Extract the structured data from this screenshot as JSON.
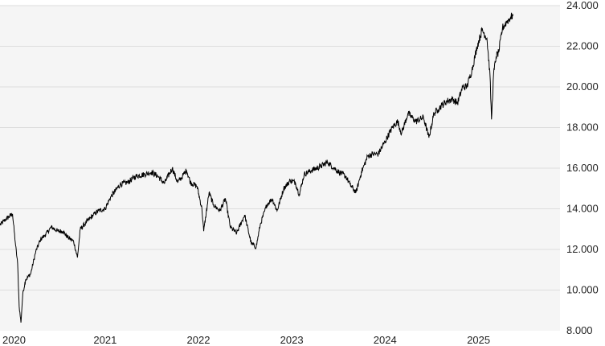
{
  "chart_data": {
    "type": "line",
    "title": "",
    "xlabel": "",
    "ylabel": "",
    "grid": true,
    "legend": "none",
    "colors": {
      "plot_background": "#f5f5f5",
      "grid": "#dddddd",
      "line": "#000000"
    },
    "ylim": [
      8000,
      24000
    ],
    "xlim": [
      "2020-01-01",
      "2025-12-31"
    ],
    "y_ticks": [
      {
        "value": 8000,
        "label": "8.000"
      },
      {
        "value": 10000,
        "label": "10.000"
      },
      {
        "value": 12000,
        "label": "12.000"
      },
      {
        "value": 14000,
        "label": "14.000"
      },
      {
        "value": 16000,
        "label": "16.000"
      },
      {
        "value": 18000,
        "label": "18.000"
      },
      {
        "value": 20000,
        "label": "20.000"
      },
      {
        "value": 22000,
        "label": "22.000"
      },
      {
        "value": 24000,
        "label": "24.000"
      }
    ],
    "x_ticks": [
      {
        "value": "2020-01-01",
        "label": "2020"
      },
      {
        "value": "2021-01-01",
        "label": "2021"
      },
      {
        "value": "2022-01-01",
        "label": "2022"
      },
      {
        "value": "2023-01-01",
        "label": "2023"
      },
      {
        "value": "2024-01-01",
        "label": "2024"
      },
      {
        "value": "2025-01-01",
        "label": "2025"
      }
    ],
    "series": [
      {
        "x": [
          "2020-01-01",
          "2020-01-25",
          "2020-02-19",
          "2020-03-02",
          "2020-03-10",
          "2020-03-16",
          "2020-03-23",
          "2020-03-30",
          "2020-04-10",
          "2020-04-30",
          "2020-05-20",
          "2020-06-08",
          "2020-06-25",
          "2020-07-20",
          "2020-08-15",
          "2020-09-03",
          "2020-09-22",
          "2020-10-15",
          "2020-10-30",
          "2020-11-10",
          "2020-12-01",
          "2020-12-31",
          "2021-01-20",
          "2021-02-15",
          "2021-03-10",
          "2021-04-15",
          "2021-05-15",
          "2021-06-15",
          "2021-07-20",
          "2021-08-15",
          "2021-09-10",
          "2021-10-05",
          "2021-11-05",
          "2021-11-26",
          "2021-12-15",
          "2021-12-31",
          "2022-01-15",
          "2022-02-10",
          "2022-03-01",
          "2022-03-08",
          "2022-03-29",
          "2022-04-15",
          "2022-05-10",
          "2022-06-01",
          "2022-06-20",
          "2022-07-15",
          "2022-08-15",
          "2022-09-10",
          "2022-09-29",
          "2022-10-15",
          "2022-11-10",
          "2022-12-01",
          "2022-12-20",
          "2023-01-15",
          "2023-02-10",
          "2023-03-01",
          "2023-03-17",
          "2023-04-05",
          "2023-05-05",
          "2023-06-10",
          "2023-07-05",
          "2023-07-31",
          "2023-08-20",
          "2023-09-15",
          "2023-10-01",
          "2023-10-25",
          "2023-11-15",
          "2023-12-10",
          "2023-12-31",
          "2024-01-20",
          "2024-02-15",
          "2024-03-15",
          "2024-04-05",
          "2024-04-20",
          "2024-05-15",
          "2024-06-15",
          "2024-07-15",
          "2024-08-05",
          "2024-08-25",
          "2024-09-10",
          "2024-09-25",
          "2024-10-15",
          "2024-11-05",
          "2024-11-25",
          "2024-12-15",
          "2024-12-31",
          "2025-01-20",
          "2025-02-10",
          "2025-03-01",
          "2025-03-20",
          "2025-04-01",
          "2025-04-07",
          "2025-04-15",
          "2025-04-25",
          "2025-05-05",
          "2025-05-20",
          "2025-06-05",
          "2025-06-20",
          "2025-07-01"
        ],
        "y": [
          13200,
          13500,
          13750,
          12200,
          11300,
          9200,
          8400,
          9800,
          10500,
          10800,
          11900,
          12500,
          12700,
          13100,
          12900,
          12900,
          12600,
          12400,
          11600,
          13000,
          13300,
          13700,
          13900,
          14000,
          14600,
          15200,
          15300,
          15600,
          15700,
          15800,
          15600,
          15250,
          16000,
          15300,
          15600,
          15900,
          15300,
          15100,
          14000,
          12900,
          14800,
          14200,
          13900,
          14500,
          13100,
          12800,
          13700,
          12300,
          12100,
          13200,
          14200,
          14500,
          13900,
          15000,
          15400,
          15300,
          14700,
          15700,
          15900,
          16100,
          16300,
          16000,
          15800,
          15600,
          15200,
          14800,
          15800,
          16600,
          16700,
          16700,
          17300,
          18000,
          18300,
          17700,
          18700,
          18300,
          18500,
          17500,
          18700,
          18900,
          19100,
          19300,
          19400,
          19200,
          20000,
          20000,
          20800,
          22000,
          22800,
          22400,
          20600,
          18400,
          20600,
          21500,
          21700,
          22900,
          23200,
          23400,
          23550
        ]
      }
    ]
  }
}
